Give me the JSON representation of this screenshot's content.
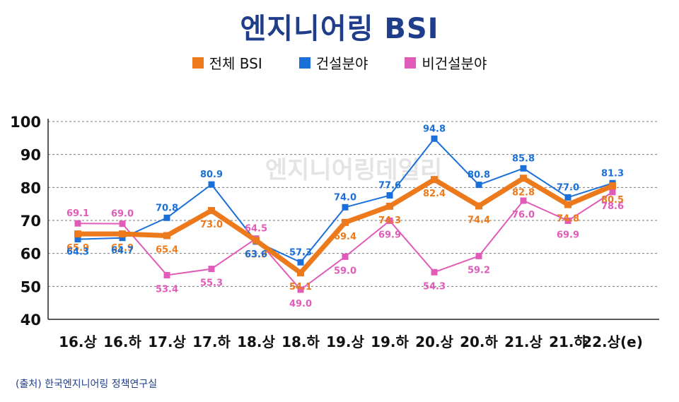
{
  "title": "엔지니어링 BSI",
  "source": "(출처) 한국엔지니어링 정책연구실",
  "watermark": "엔지니어링데일리",
  "legend": [
    {
      "name": "전체 BSI",
      "color": "#ec7a1c"
    },
    {
      "name": "건설분야",
      "color": "#1a6fd8"
    },
    {
      "name": "비건설분야",
      "color": "#e05cb8"
    }
  ],
  "chart_data": {
    "type": "line",
    "categories": [
      "16.상",
      "16.하",
      "17.상",
      "17.하",
      "18.상",
      "18.하",
      "19.상",
      "19.하",
      "20.상",
      "20.하",
      "21.상",
      "21.하",
      "22.상(e)"
    ],
    "ylim": [
      40,
      100
    ],
    "yticks": [
      40,
      50,
      60,
      70,
      80,
      90,
      100
    ],
    "grid": true,
    "legend_position": "top",
    "series": [
      {
        "name": "전체 BSI",
        "color": "#ec7a1c",
        "values": [
          65.9,
          65.9,
          65.4,
          73.0,
          63.9,
          54.1,
          69.4,
          74.3,
          82.4,
          74.4,
          82.8,
          74.8,
          80.5
        ],
        "labels": [
          "65.9",
          "65.9",
          "65.4",
          "73.0",
          "63.9",
          "54.1",
          "69.4",
          "74.3",
          "82.4",
          "74.4",
          "82.8",
          "74.8",
          "80.5"
        ]
      },
      {
        "name": "건설분야",
        "color": "#1a6fd8",
        "values": [
          64.3,
          64.7,
          70.8,
          80.9,
          63.6,
          57.3,
          74.0,
          77.6,
          94.8,
          80.8,
          85.8,
          77.0,
          81.3
        ],
        "labels": [
          "64.3",
          "64.7",
          "70.8",
          "80.9",
          "63.6",
          "57.3",
          "74.0",
          "77.6",
          "94.8",
          "80.8",
          "85.8",
          "77.0",
          "81.3"
        ]
      },
      {
        "name": "비건설분야",
        "color": "#e05cb8",
        "values": [
          69.1,
          69.0,
          53.4,
          55.3,
          64.5,
          49.0,
          59.0,
          69.9,
          54.3,
          59.2,
          76.0,
          69.9,
          78.6
        ],
        "labels": [
          "69.1",
          "69.0",
          "53.4",
          "55.3",
          "64.5",
          "49.0",
          "59.0",
          "69.9",
          "54.3",
          "59.2",
          "76.0",
          "69.9",
          "78.6"
        ]
      }
    ]
  }
}
